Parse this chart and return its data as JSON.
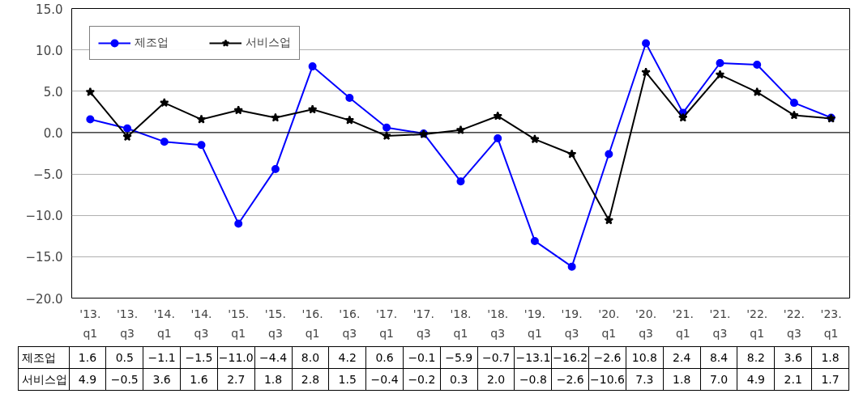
{
  "chart_data": {
    "type": "line",
    "categories": [
      "'13.\nq1",
      "'13.\nq3",
      "'14.\nq1",
      "'14.\nq3",
      "'15.\nq1",
      "'15.\nq3",
      "'16.\nq1",
      "'16.\nq3",
      "'17.\nq1",
      "'17.\nq3",
      "'18.\nq1",
      "'18.\nq3",
      "'19.\nq1",
      "'19.\nq3",
      "'20.\nq1",
      "'20.\nq3",
      "'21.\nq1",
      "'21.\nq3",
      "'22.\nq1",
      "'22.\nq3",
      "'23.\nq1"
    ],
    "series": [
      {
        "name": "제조업",
        "color": "#0000ff",
        "marker": "circle",
        "values": [
          1.6,
          0.5,
          -1.1,
          -1.5,
          -11.0,
          -4.4,
          8.0,
          4.2,
          0.6,
          -0.1,
          -5.9,
          -0.7,
          -13.1,
          -16.2,
          -2.6,
          10.8,
          2.4,
          8.4,
          8.2,
          3.6,
          1.8
        ],
        "value_labels": [
          "1.6",
          "0.5",
          "−1.1",
          "−1.5",
          "−11.0",
          "−4.4",
          "8.0",
          "4.2",
          "0.6",
          "−0.1",
          "−5.9",
          "−0.7",
          "−13.1",
          "−16.2",
          "−2.6",
          "10.8",
          "2.4",
          "8.4",
          "8.2",
          "3.6",
          "1.8"
        ]
      },
      {
        "name": "서비스업",
        "color": "#000000",
        "marker": "star",
        "values": [
          4.9,
          -0.5,
          3.6,
          1.6,
          2.7,
          1.8,
          2.8,
          1.5,
          -0.4,
          -0.2,
          0.3,
          2.0,
          -0.8,
          -2.6,
          -10.6,
          7.3,
          1.8,
          7.0,
          4.9,
          2.1,
          1.7
        ],
        "value_labels": [
          "4.9",
          "−0.5",
          "3.6",
          "1.6",
          "2.7",
          "1.8",
          "2.8",
          "1.5",
          "−0.4",
          "−0.2",
          "0.3",
          "2.0",
          "−0.8",
          "−2.6",
          "−10.6",
          "7.3",
          "1.8",
          "7.0",
          "4.9",
          "2.1",
          "1.7"
        ]
      }
    ],
    "ylim": [
      -20,
      15
    ],
    "yticks": [
      {
        "value": -20,
        "label": "−20.0"
      },
      {
        "value": -15,
        "label": "−15.0"
      },
      {
        "value": -10,
        "label": "−10.0"
      },
      {
        "value": -5,
        "label": "−5.0"
      },
      {
        "value": 0,
        "label": "0.0"
      },
      {
        "value": 5,
        "label": "5.0"
      },
      {
        "value": 10,
        "label": "10.0"
      },
      {
        "value": 15,
        "label": "15.0"
      }
    ],
    "ref_lines": [
      {
        "axis": "y",
        "value": 0,
        "color": "#000000"
      }
    ],
    "grid": "y",
    "legend": "top left",
    "line_style": "solid"
  }
}
